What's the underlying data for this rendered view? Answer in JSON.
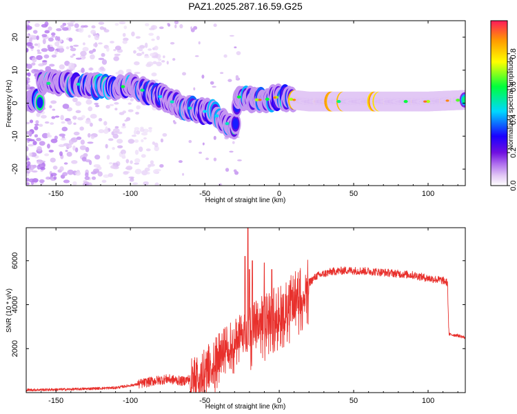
{
  "title": "PAZ1.2025.287.16.59.G25",
  "colors": {
    "snr_line": "#e8302c",
    "axis": "#000000",
    "background": "#ffffff"
  },
  "chart_data": [
    {
      "type": "heatmap",
      "name": "spectrogram",
      "xlabel": "Height of straight line (km)",
      "ylabel": "Frequency (Hz)",
      "xlim": [
        -170,
        125
      ],
      "ylim": [
        -25,
        25
      ],
      "xticks": [
        -150,
        -100,
        -50,
        0,
        50,
        100
      ],
      "yticks": [
        -20,
        -10,
        0,
        10,
        20
      ],
      "colorbar": {
        "label": "Normalized spectral amplitude",
        "range": [
          0.0,
          1.0
        ],
        "ticks": [
          0.0,
          0.2,
          0.4,
          0.6,
          0.8
        ],
        "colormap": [
          "#ffffff",
          "#e2c8f5",
          "#b070ee",
          "#7010e0",
          "#1a00ff",
          "#00d8ff",
          "#00ff3c",
          "#ffff00",
          "#ff9a00",
          "#ff1a5a"
        ]
      },
      "ridge": {
        "description_points_km_hz": [
          [
            -160,
            6
          ],
          [
            -140,
            6
          ],
          [
            -120,
            5
          ],
          [
            -100,
            5
          ],
          [
            -85,
            3
          ],
          [
            -75,
            1
          ],
          [
            -65,
            -1
          ],
          [
            -55,
            -2
          ],
          [
            -45,
            -3
          ],
          [
            -38,
            -5
          ],
          [
            -33,
            -7
          ],
          [
            -30,
            -9
          ],
          [
            -28,
            2
          ],
          [
            -20,
            1
          ],
          [
            -10,
            1
          ],
          [
            0,
            2
          ],
          [
            10,
            1
          ],
          [
            20,
            0.5
          ],
          [
            60,
            0.5
          ],
          [
            100,
            0.5
          ],
          [
            125,
            1
          ]
        ],
        "band_start_km": 10
      }
    },
    {
      "type": "line",
      "name": "snr",
      "xlabel": "Height of straight line (km)",
      "ylabel": "SNR (10 * v/v)",
      "xlim": [
        -170,
        125
      ],
      "ylim": [
        0,
        7500
      ],
      "xticks": [
        -150,
        -100,
        -50,
        0,
        50,
        100
      ],
      "yticks": [
        2000,
        4000,
        6000
      ],
      "envelope_km_snr": [
        [
          -170,
          120
        ],
        [
          -140,
          150
        ],
        [
          -110,
          220
        ],
        [
          -95,
          380
        ],
        [
          -85,
          520
        ],
        [
          -75,
          620
        ],
        [
          -65,
          520
        ],
        [
          -60,
          620
        ],
        [
          -55,
          820
        ],
        [
          -50,
          1150
        ],
        [
          -45,
          1500
        ],
        [
          -40,
          1850
        ],
        [
          -35,
          2200
        ],
        [
          -30,
          2500
        ],
        [
          -25,
          2700
        ],
        [
          -21,
          2800
        ],
        [
          -18,
          3000
        ],
        [
          -12,
          3300
        ],
        [
          -8,
          3500
        ],
        [
          -3,
          3750
        ],
        [
          2,
          3850
        ],
        [
          8,
          4250
        ],
        [
          14,
          4650
        ],
        [
          20,
          5000
        ],
        [
          25,
          5300
        ],
        [
          30,
          5400
        ],
        [
          35,
          5500
        ],
        [
          45,
          5560
        ],
        [
          60,
          5520
        ],
        [
          75,
          5440
        ],
        [
          90,
          5340
        ],
        [
          100,
          5200
        ],
        [
          110,
          5100
        ],
        [
          113,
          5000
        ],
        [
          114,
          2650
        ],
        [
          120,
          2600
        ],
        [
          125,
          2500
        ]
      ],
      "spikes_km_snr": [
        [
          -23,
          6200
        ],
        [
          -21,
          7500
        ],
        [
          -20,
          5600
        ],
        [
          -18,
          6000
        ],
        [
          -10,
          5900
        ],
        [
          -5,
          5600
        ],
        [
          5,
          4400
        ]
      ]
    }
  ]
}
